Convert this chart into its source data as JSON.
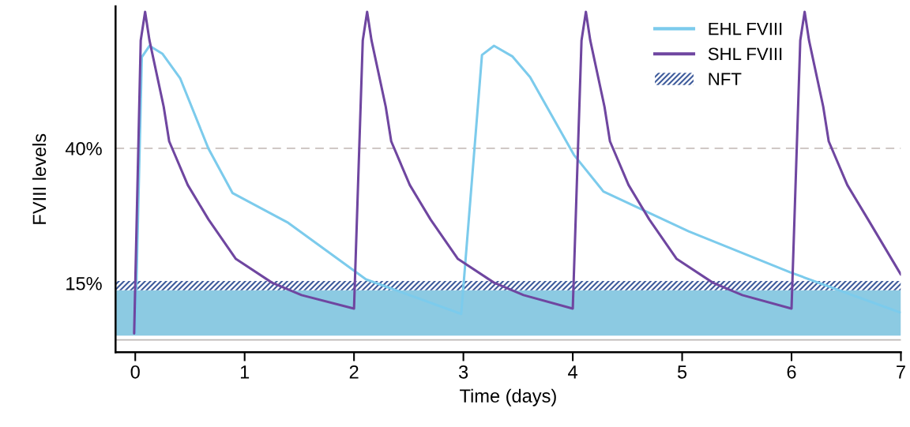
{
  "chart_data": {
    "type": "line",
    "xlabel": "Time (days)",
    "ylabel": "FVIII levels",
    "xlim": [
      -0.18,
      7
    ],
    "xticks": [
      0,
      1,
      2,
      3,
      4,
      5,
      6,
      7
    ],
    "ylim": [
      2.2,
      66.3
    ],
    "yticks": [
      {
        "value": 40,
        "label": "40%"
      },
      {
        "value": 15,
        "label": "15%"
      }
    ],
    "grid": false,
    "legend": "top right",
    "marker": "none",
    "line_style": "solid",
    "series": [
      {
        "name": "EHL FVIII",
        "color": "#7ccbec",
        "x": [
          0,
          0.06,
          0.13,
          0.25,
          0.41,
          0.67,
          0.89,
          1.39,
          2.11,
          2.98,
          3.17,
          3.28,
          3.45,
          3.61,
          4.01,
          4.28,
          5.06,
          5.99,
          6.99
        ],
        "values": [
          5.7,
          56.9,
          59.0,
          57.5,
          53.0,
          39.9,
          31.7,
          26.3,
          15.7,
          9.3,
          57.3,
          59.0,
          57.0,
          53.2,
          38.8,
          32.0,
          24.6,
          17.0,
          9.6
        ]
      },
      {
        "name": "SHL FVIII",
        "color": "#6f46a0",
        "x": [
          -0.01,
          0.05,
          0.09,
          0.13,
          0.26,
          0.31,
          0.48,
          0.67,
          0.92,
          1.25,
          1.52,
          2.0,
          2.08,
          2.12,
          2.16,
          2.29,
          2.34,
          2.51,
          2.7,
          2.95,
          3.28,
          3.55,
          4.0,
          4.08,
          4.12,
          4.16,
          4.29,
          4.34,
          4.51,
          4.7,
          4.95,
          5.28,
          5.55,
          6.0,
          6.08,
          6.12,
          6.16,
          6.29,
          6.34,
          6.51,
          6.7,
          7.0
        ],
        "values": [
          5.7,
          60,
          65.3,
          60,
          47.7,
          41.3,
          33.2,
          26.8,
          19.5,
          15.1,
          12.8,
          10.3,
          60,
          65.3,
          60,
          47.7,
          41.3,
          33.2,
          26.8,
          19.5,
          15.1,
          12.8,
          10.3,
          60,
          65.3,
          60,
          47.7,
          41.3,
          33.2,
          26.8,
          19.5,
          15.1,
          12.8,
          10.3,
          60,
          65.3,
          60,
          47.7,
          41.3,
          33.2,
          26.8,
          16.6
        ]
      }
    ],
    "bands": [
      {
        "axis": "y",
        "from": 5.3,
        "to": 13.7,
        "color": "#7fc4df"
      },
      {
        "axis": "y",
        "from": 13.7,
        "to": 15.4,
        "label": "NFT",
        "color": "#3f5c9c"
      }
    ],
    "ref_lines": [
      {
        "axis": "y",
        "value": 40,
        "color": "#c8c0bc",
        "line_style": "dashed"
      },
      {
        "axis": "y",
        "value": 4.5,
        "color": "#bdb8b6",
        "line_style": "solid"
      }
    ]
  }
}
